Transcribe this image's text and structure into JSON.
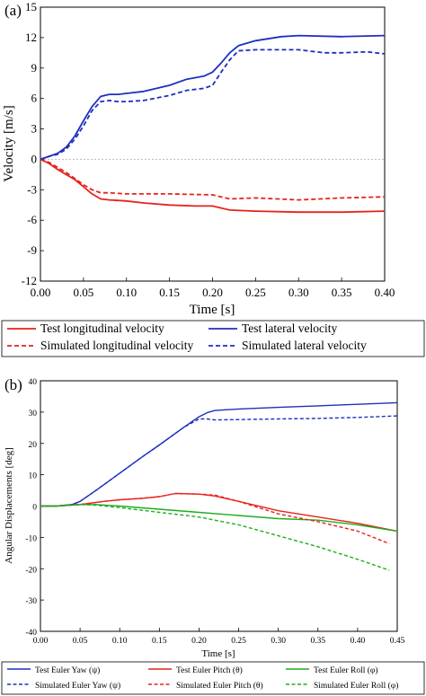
{
  "chart_data": [
    {
      "type": "line",
      "panel_label": "(a)",
      "xlabel": "Time [s]",
      "ylabel": "Velocity [m/s]",
      "xlim": [
        0.0,
        0.4
      ],
      "ylim": [
        -12,
        15
      ],
      "xticks": [
        "0.00",
        "0.05",
        "0.10",
        "0.15",
        "0.20",
        "0.25",
        "0.30",
        "0.35",
        "0.40"
      ],
      "yticks": [
        "-12",
        "-9",
        "-6",
        "-3",
        "0",
        "3",
        "6",
        "9",
        "12",
        "15"
      ],
      "grid": false,
      "legend_position": "below",
      "series": [
        {
          "name": "Test longitudinal velocity",
          "color": "#e8211c",
          "dash": "solid",
          "x": [
            0,
            0.01,
            0.02,
            0.03,
            0.04,
            0.05,
            0.06,
            0.07,
            0.08,
            0.1,
            0.12,
            0.15,
            0.18,
            0.2,
            0.22,
            0.25,
            0.3,
            0.35,
            0.4
          ],
          "y": [
            0,
            -0.4,
            -1.0,
            -1.5,
            -2.0,
            -2.7,
            -3.4,
            -3.9,
            -4.0,
            -4.1,
            -4.3,
            -4.5,
            -4.6,
            -4.6,
            -5.0,
            -5.1,
            -5.2,
            -5.2,
            -5.1
          ]
        },
        {
          "name": "Test lateral velocity",
          "color": "#1f2fbf",
          "dash": "solid",
          "x": [
            0,
            0.01,
            0.02,
            0.03,
            0.04,
            0.05,
            0.06,
            0.07,
            0.08,
            0.09,
            0.1,
            0.12,
            0.15,
            0.17,
            0.19,
            0.2,
            0.21,
            0.22,
            0.23,
            0.25,
            0.28,
            0.3,
            0.35,
            0.4
          ],
          "y": [
            0,
            0.3,
            0.6,
            1.2,
            2.3,
            3.8,
            5.2,
            6.2,
            6.4,
            6.4,
            6.5,
            6.7,
            7.3,
            7.9,
            8.2,
            8.6,
            9.5,
            10.5,
            11.2,
            11.7,
            12.1,
            12.2,
            12.1,
            12.2
          ]
        },
        {
          "name": "Simulated longitudinal velocity",
          "color": "#e8211c",
          "dash": "dashed",
          "x": [
            0,
            0.01,
            0.02,
            0.03,
            0.04,
            0.05,
            0.06,
            0.07,
            0.08,
            0.1,
            0.15,
            0.2,
            0.22,
            0.25,
            0.3,
            0.35,
            0.4
          ],
          "y": [
            0,
            -0.3,
            -0.8,
            -1.3,
            -1.9,
            -2.5,
            -3.0,
            -3.3,
            -3.3,
            -3.4,
            -3.4,
            -3.5,
            -3.9,
            -3.8,
            -4.0,
            -3.8,
            -3.7
          ]
        },
        {
          "name": "Simulated lateral velocity",
          "color": "#1f2fbf",
          "dash": "dashed",
          "x": [
            0,
            0.01,
            0.02,
            0.03,
            0.04,
            0.05,
            0.06,
            0.07,
            0.08,
            0.09,
            0.1,
            0.12,
            0.15,
            0.17,
            0.19,
            0.2,
            0.21,
            0.22,
            0.23,
            0.25,
            0.3,
            0.33,
            0.35,
            0.38,
            0.4
          ],
          "y": [
            0,
            0.3,
            0.5,
            1.0,
            2.0,
            3.3,
            4.8,
            5.7,
            5.8,
            5.7,
            5.7,
            5.8,
            6.3,
            6.8,
            7.0,
            7.3,
            8.6,
            9.8,
            10.7,
            10.8,
            10.8,
            10.5,
            10.5,
            10.6,
            10.4
          ]
        }
      ]
    },
    {
      "type": "line",
      "panel_label": "(b)",
      "xlabel": "Time [s]",
      "ylabel": "Angular Displacements [deg]",
      "xlim": [
        0.0,
        0.45
      ],
      "ylim": [
        -40,
        40
      ],
      "xticks": [
        "0.00",
        "0.05",
        "0.10",
        "0.15",
        "0.20",
        "0.25",
        "0.30",
        "0.35",
        "0.40",
        "0.45"
      ],
      "yticks": [
        "-40",
        "-30",
        "-20",
        "-10",
        "0",
        "10",
        "20",
        "30",
        "40"
      ],
      "grid": false,
      "legend_position": "below",
      "series": [
        {
          "name": "Test Euler Yaw (ψ)",
          "color": "#1f2fbf",
          "dash": "solid",
          "x": [
            0,
            0.02,
            0.04,
            0.05,
            0.07,
            0.1,
            0.13,
            0.15,
            0.18,
            0.2,
            0.21,
            0.22,
            0.25,
            0.3,
            0.35,
            0.4,
            0.45
          ],
          "y": [
            0,
            0,
            0.5,
            1.5,
            5,
            10.5,
            16,
            19.5,
            25,
            28.5,
            29.8,
            30.5,
            31,
            31.5,
            32,
            32.5,
            33
          ]
        },
        {
          "name": "Test Euler Pitch (θ)",
          "color": "#e8211c",
          "dash": "solid",
          "x": [
            0,
            0.02,
            0.05,
            0.08,
            0.1,
            0.13,
            0.15,
            0.17,
            0.2,
            0.22,
            0.25,
            0.3,
            0.35,
            0.4,
            0.45
          ],
          "y": [
            0,
            0,
            0.5,
            1.5,
            2,
            2.5,
            3,
            4,
            3.8,
            3.2,
            1.5,
            -1.5,
            -3.5,
            -5.5,
            -8
          ]
        },
        {
          "name": "Test Euler Roll (φ)",
          "color": "#1fad1f",
          "dash": "solid",
          "x": [
            0,
            0.02,
            0.05,
            0.07,
            0.1,
            0.15,
            0.2,
            0.25,
            0.3,
            0.35,
            0.4,
            0.45
          ],
          "y": [
            0,
            0,
            0.5,
            0.5,
            0,
            -1,
            -2,
            -3,
            -4,
            -4.5,
            -6,
            -8
          ]
        },
        {
          "name": "Simulated Euler Yaw (ψ)",
          "color": "#1f2fbf",
          "dash": "dashed",
          "x": [
            0,
            0.02,
            0.04,
            0.05,
            0.07,
            0.1,
            0.13,
            0.15,
            0.18,
            0.2,
            0.21,
            0.22,
            0.25,
            0.3,
            0.35,
            0.4,
            0.45
          ],
          "y": [
            0,
            0,
            0.5,
            1.5,
            5,
            10.5,
            16,
            19.5,
            25,
            27.8,
            27.8,
            27.5,
            27.6,
            27.8,
            28,
            28.3,
            28.8
          ]
        },
        {
          "name": "Simulated Euler Pitch (θ)",
          "color": "#e8211c",
          "dash": "dashed",
          "x": [
            0,
            0.02,
            0.05,
            0.08,
            0.1,
            0.13,
            0.15,
            0.17,
            0.2,
            0.22,
            0.25,
            0.3,
            0.35,
            0.4,
            0.44
          ],
          "y": [
            0,
            0,
            0.5,
            1.5,
            2,
            2.5,
            3,
            4,
            3.8,
            3.5,
            1.5,
            -2.5,
            -5,
            -8,
            -12
          ]
        },
        {
          "name": "Simulated Euler Roll (φ)",
          "color": "#1fad1f",
          "dash": "dashed",
          "x": [
            0,
            0.02,
            0.05,
            0.07,
            0.1,
            0.15,
            0.2,
            0.25,
            0.3,
            0.35,
            0.4,
            0.44
          ],
          "y": [
            0,
            0,
            0.5,
            0.3,
            -0.5,
            -2,
            -3.5,
            -6,
            -9.5,
            -13,
            -17,
            -20.5
          ]
        }
      ]
    }
  ]
}
